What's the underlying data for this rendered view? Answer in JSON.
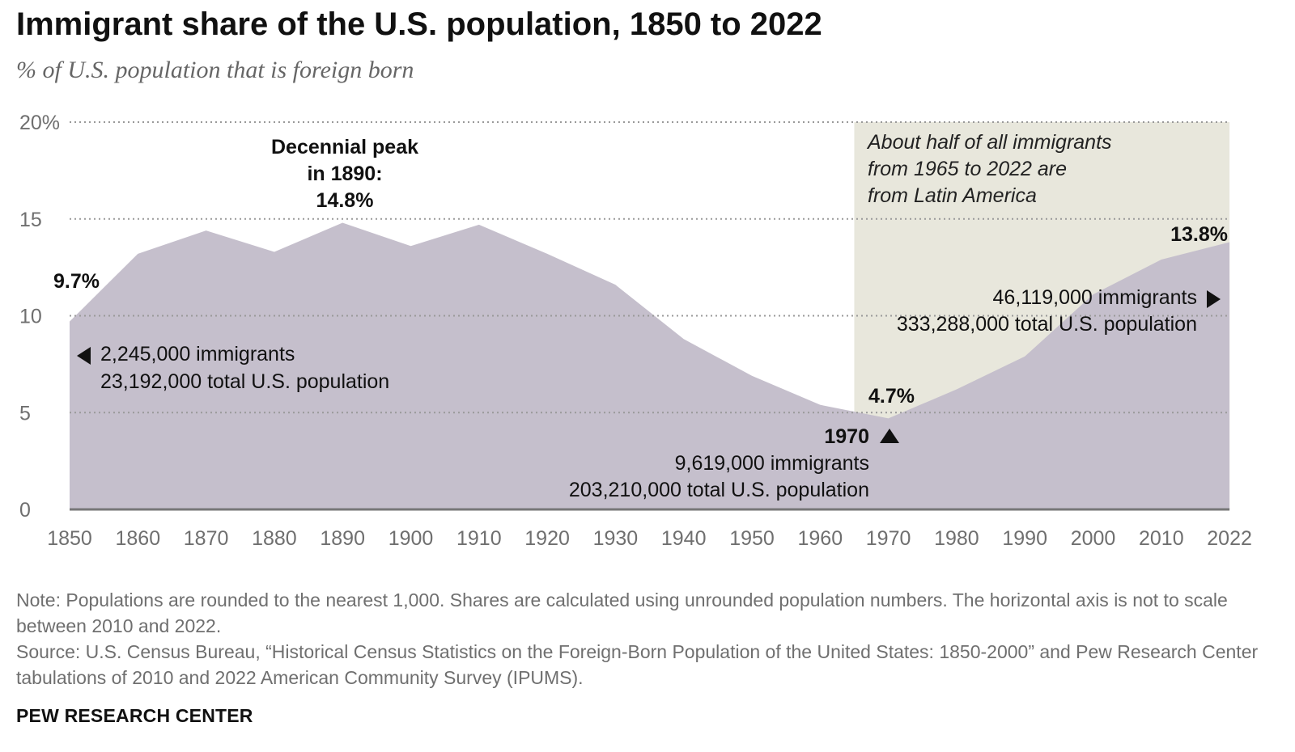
{
  "title": "Immigrant share of the U.S. population, 1850 to 2022",
  "subtitle": "% of U.S. population that is foreign born",
  "chart_data": {
    "type": "area",
    "x": [
      "1850",
      "1860",
      "1870",
      "1880",
      "1890",
      "1900",
      "1910",
      "1920",
      "1930",
      "1940",
      "1950",
      "1960",
      "1970",
      "1980",
      "1990",
      "2000",
      "2010",
      "2022"
    ],
    "series": [
      {
        "values": [
          9.7,
          13.2,
          14.4,
          13.3,
          14.8,
          13.6,
          14.7,
          13.2,
          11.6,
          8.8,
          6.9,
          5.4,
          4.7,
          6.2,
          7.9,
          11.1,
          12.9,
          13.8
        ]
      }
    ],
    "ylim": [
      0,
      20
    ],
    "yticks": [
      {
        "value": 0,
        "label": "0"
      },
      {
        "value": 5,
        "label": "5"
      },
      {
        "value": 10,
        "label": "10"
      },
      {
        "value": 15,
        "label": "15"
      },
      {
        "value": 20,
        "label": "20%"
      }
    ],
    "grid": true,
    "colors": {
      "area": "#c5bfcc",
      "highlight": "#e8e7dc",
      "axis": "#777777",
      "grid": "#999999"
    },
    "highlight_region": {
      "x_start": 1965,
      "x_end": 2022,
      "text": [
        "About half of all immigrants",
        "from 1965 to 2022 are",
        "from Latin America"
      ]
    },
    "annotations": {
      "peak": {
        "lines": [
          "Decennial peak",
          "in 1890:",
          "14.8%"
        ]
      },
      "start_value": "9.7%",
      "end_value": "13.8%",
      "low_value": "4.7%",
      "start_detail": [
        "2,245,000 immigrants",
        "23,192,000 total U.S. population"
      ],
      "low_year": "1970",
      "low_detail": [
        "9,619,000 immigrants",
        "203,210,000 total U.S. population"
      ],
      "end_detail": [
        "46,119,000 immigrants",
        "333,288,000 total U.S. population"
      ]
    }
  },
  "notes": {
    "note": "Note: Populations are rounded to the nearest 1,000. Shares are calculated using unrounded population numbers. The horizontal axis is not to scale between 2010 and 2022.",
    "source": "Source: U.S. Census Bureau, “Historical Census Statistics on the Foreign-Born Population of the United States: 1850-2000” and Pew Research Center tabulations of 2010 and 2022 American Community Survey (IPUMS)."
  },
  "footer": "PEW RESEARCH CENTER"
}
